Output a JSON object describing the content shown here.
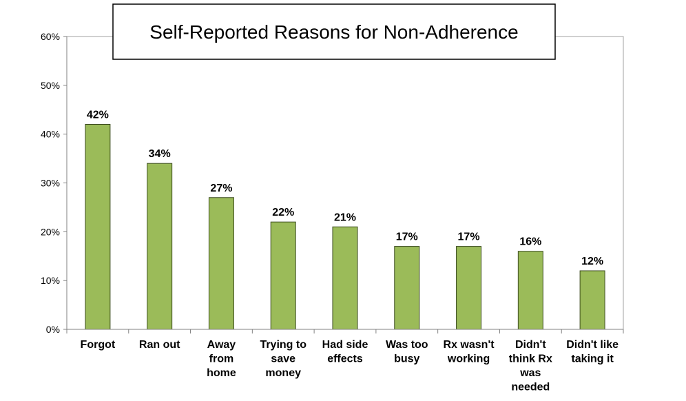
{
  "chart_data": {
    "type": "bar",
    "title": "Self-Reported Reasons for Non-Adherence",
    "xlabel": "",
    "ylabel": "",
    "ylim": [
      0,
      60
    ],
    "yticks": [
      "0%",
      "10%",
      "20%",
      "30%",
      "40%",
      "50%",
      "60%"
    ],
    "grid": false,
    "categories": [
      [
        "Forgot"
      ],
      [
        "Ran out"
      ],
      [
        "Away",
        "from",
        "home"
      ],
      [
        "Trying to",
        "save",
        "money"
      ],
      [
        "Had side",
        "effects"
      ],
      [
        "Was too",
        "busy"
      ],
      [
        "Rx wasn't",
        "working"
      ],
      [
        "Didn't",
        "think Rx",
        "was",
        "needed"
      ],
      [
        "Didn't like",
        "taking it"
      ]
    ],
    "values": [
      42,
      34,
      27,
      22,
      21,
      17,
      17,
      16,
      12
    ],
    "data_labels": [
      "42%",
      "34%",
      "27%",
      "22%",
      "21%",
      "17%",
      "17%",
      "16%",
      "12%"
    ],
    "colors": {
      "bar_fill": "#9BBB59",
      "bar_stroke": "#3A4A1E",
      "axis": "#808080",
      "plot_border": "#A0A0A0"
    }
  }
}
